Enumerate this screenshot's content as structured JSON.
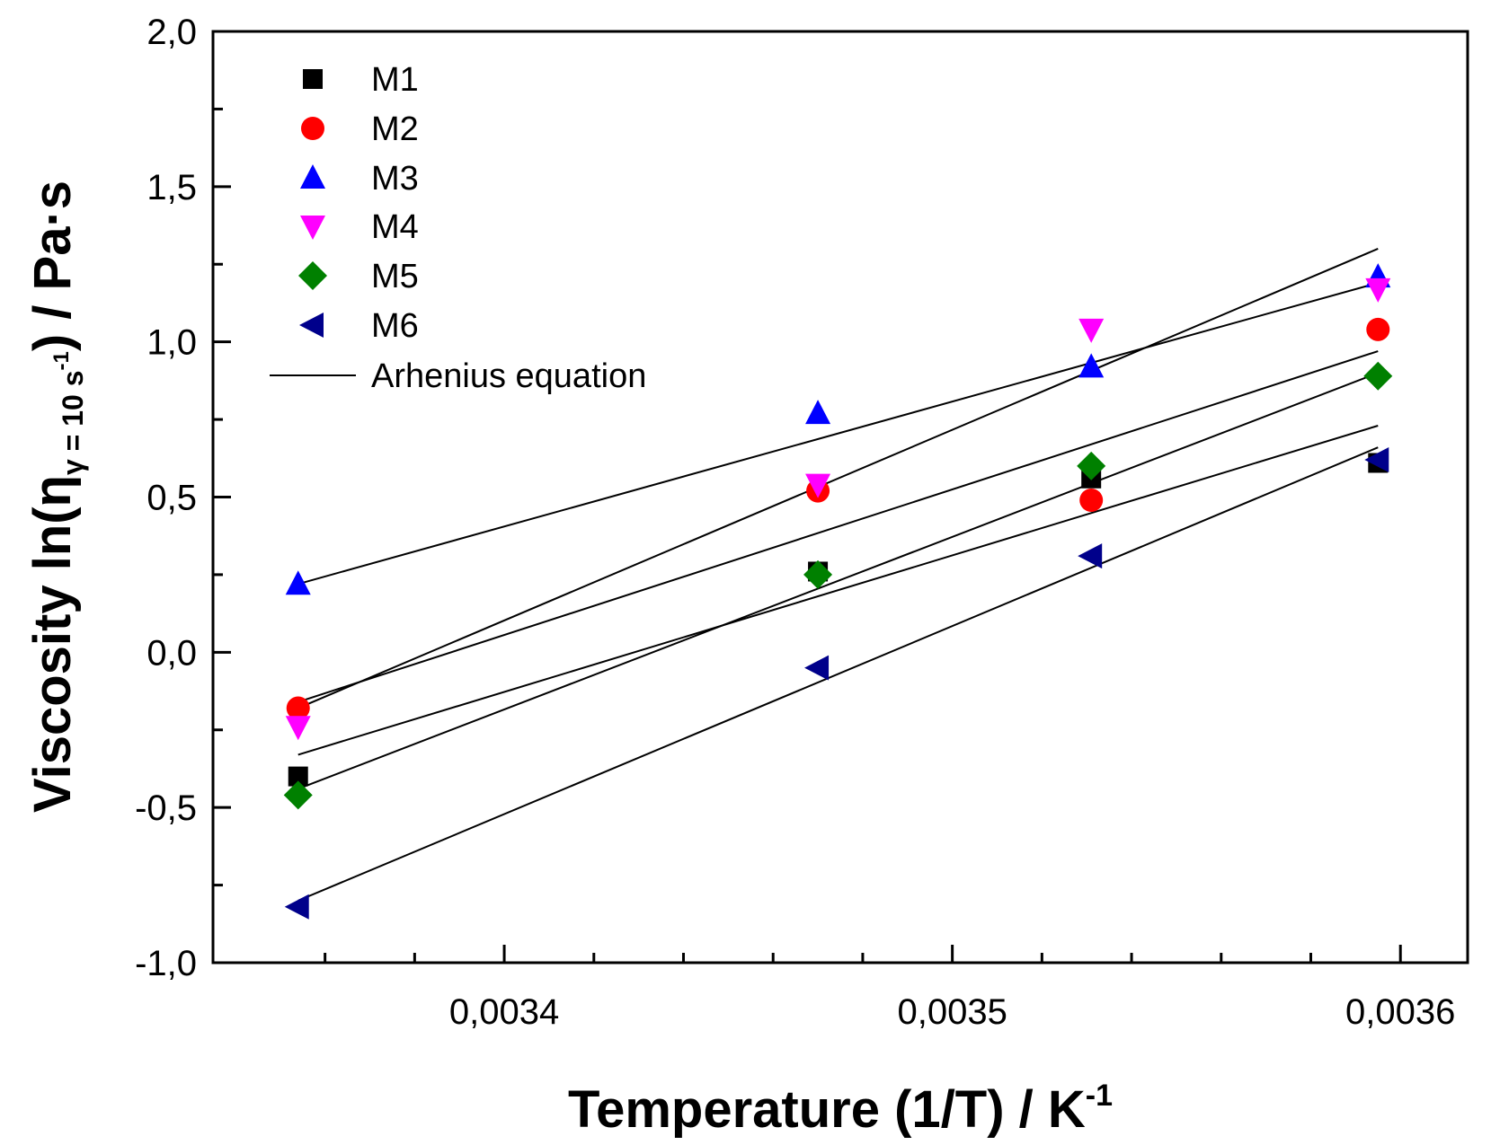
{
  "chart_data": {
    "type": "scatter",
    "title": "",
    "xlabel": {
      "main": "Temperature (1/T) / K",
      "sup": "-1"
    },
    "ylabel": {
      "pre": "Viscosity ln(η",
      "sub": "γ = 10 s",
      "subsup": "-1",
      "post": ") / Pa·s"
    },
    "xlim": [
      0.003335,
      0.003615
    ],
    "ylim": [
      -1.0,
      2.0
    ],
    "x_ticks": [
      0.0034,
      0.0035,
      0.0036
    ],
    "x_tick_labels": [
      "0,0034",
      "0,0035",
      "0,0036"
    ],
    "x_minor_ticks": [
      0.00336,
      0.00338,
      0.00342,
      0.00344,
      0.00346,
      0.00348,
      0.00352,
      0.00354,
      0.00356,
      0.00358
    ],
    "y_ticks": [
      -1.0,
      -0.5,
      0.0,
      0.5,
      1.0,
      1.5,
      2.0
    ],
    "y_tick_labels": [
      "-1,0",
      "-0,5",
      "0,0",
      "0,5",
      "1,0",
      "1,5",
      "2,0"
    ],
    "y_minor_ticks": [
      -0.75,
      -0.25,
      0.25,
      0.75,
      1.25,
      1.75
    ],
    "grid": false,
    "legend_position": "top-left",
    "x": [
      0.003354,
      0.00347,
      0.003531,
      0.003595
    ],
    "series": [
      {
        "name": "M1",
        "marker": "square",
        "color": "#000000",
        "values": [
          -0.4,
          0.26,
          0.56,
          0.61
        ],
        "fit": [
          [
            0.003354,
            -0.33
          ],
          [
            0.003595,
            0.73
          ]
        ]
      },
      {
        "name": "M2",
        "marker": "circle",
        "color": "#ff0000",
        "values": [
          -0.18,
          0.52,
          0.49,
          1.04
        ],
        "fit": [
          [
            0.003354,
            -0.16
          ],
          [
            0.003595,
            0.97
          ]
        ]
      },
      {
        "name": "M3",
        "marker": "triangle-up",
        "color": "#0000ff",
        "values": [
          0.22,
          0.77,
          0.92,
          1.21
        ],
        "fit": [
          [
            0.003354,
            0.22
          ],
          [
            0.003595,
            1.19
          ]
        ]
      },
      {
        "name": "M4",
        "marker": "triangle-down",
        "color": "#ff00ff",
        "values": [
          -0.24,
          0.54,
          1.04,
          1.17
        ],
        "fit": [
          [
            0.003354,
            -0.18
          ],
          [
            0.003595,
            1.3
          ]
        ]
      },
      {
        "name": "M5",
        "marker": "diamond",
        "color": "#008000",
        "values": [
          -0.46,
          0.25,
          0.6,
          0.89
        ],
        "fit": [
          [
            0.003354,
            -0.44
          ],
          [
            0.003595,
            0.9
          ]
        ]
      },
      {
        "name": "M6",
        "marker": "triangle-left",
        "color": "#00008b",
        "values": [
          -0.82,
          -0.05,
          0.31,
          0.62
        ],
        "fit": [
          [
            0.003354,
            -0.8
          ],
          [
            0.003595,
            0.66
          ]
        ]
      }
    ],
    "fit_legend_label": "Arhenius equation"
  }
}
